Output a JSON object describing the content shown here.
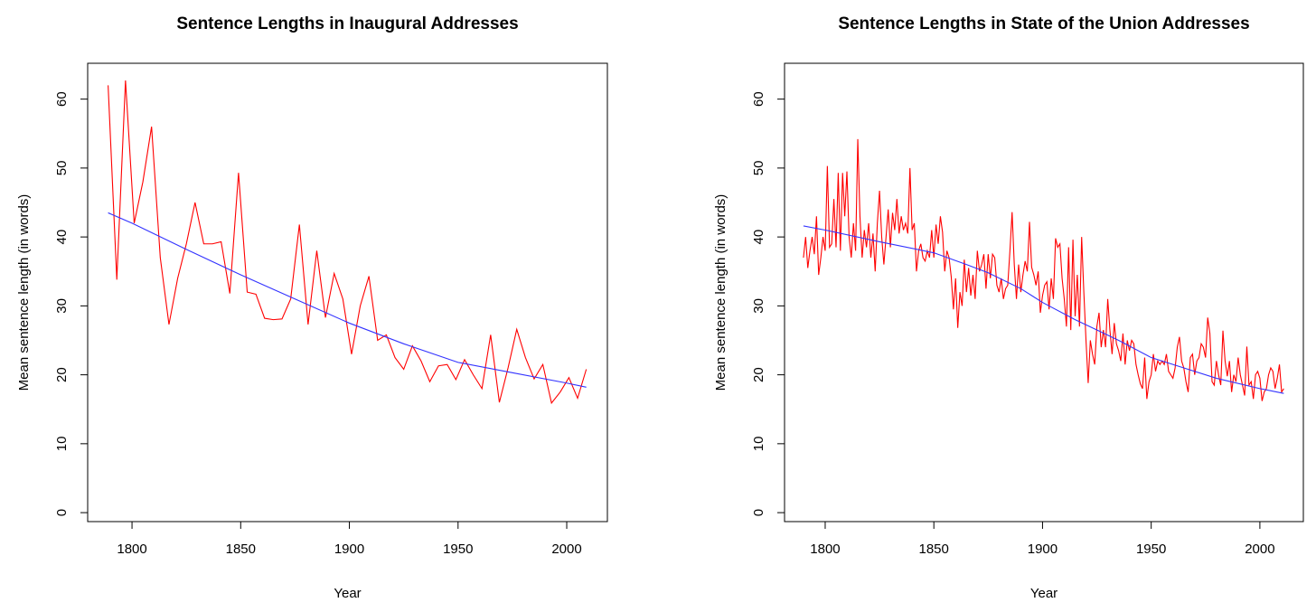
{
  "chart_data": [
    {
      "type": "line",
      "title": "Sentence Lengths in Inaugural Addresses",
      "xlabel": "Year",
      "ylabel": "Mean sentence length (in words)",
      "xlim": [
        1779.6,
        2018.7
      ],
      "ylim": [
        -1.3,
        65.2
      ],
      "xticks": [
        1800,
        1850,
        1900,
        1950,
        2000
      ],
      "yticks": [
        0,
        10,
        20,
        30,
        40,
        50,
        60
      ],
      "series": [
        {
          "color": "#ff0000",
          "x": [
            1789,
            1793,
            1797,
            1801,
            1805,
            1809,
            1813,
            1817,
            1821,
            1825,
            1829,
            1833,
            1837,
            1841,
            1845,
            1849,
            1853,
            1857,
            1861,
            1865,
            1869,
            1873,
            1877,
            1881,
            1885,
            1889,
            1893,
            1897,
            1901,
            1905,
            1909,
            1913,
            1917,
            1921,
            1925,
            1929,
            1933,
            1937,
            1941,
            1945,
            1949,
            1953,
            1957,
            1961,
            1965,
            1969,
            1973,
            1977,
            1981,
            1985,
            1989,
            1993,
            1997,
            2001,
            2005,
            2009
          ],
          "values": [
            62,
            33.8,
            62.7,
            42,
            48,
            56,
            37,
            27.3,
            34,
            39,
            45,
            39,
            39,
            39.3,
            31.8,
            49.3,
            32,
            31.7,
            28.2,
            28,
            28.1,
            31,
            41.8,
            27.3,
            38,
            28.3,
            34.7,
            31,
            23,
            30,
            34.3,
            25,
            25.8,
            22.5,
            20.8,
            24.2,
            22,
            19,
            21.3,
            21.5,
            19.3,
            22.2,
            20,
            18,
            25.8,
            16,
            21,
            26.6,
            22.5,
            19.4,
            21.5,
            15.9,
            17.5,
            19.6,
            16.6,
            20.8
          ]
        },
        {
          "color": "#3333ff",
          "x": [
            1789,
            1800,
            1825,
            1850,
            1875,
            1900,
            1925,
            1950,
            1975,
            2000,
            2009
          ],
          "values": [
            43.5,
            42,
            38.2,
            34.5,
            31,
            27.5,
            24.5,
            21.8,
            20.3,
            18.8,
            18.2
          ]
        }
      ]
    },
    {
      "type": "line",
      "title": "Sentence Lengths in State of the Union Addresses",
      "xlabel": "Year",
      "ylabel": "Mean sentence length (in words)",
      "xlim": [
        1781.3,
        2020.0
      ],
      "ylim": [
        -1.3,
        65.2
      ],
      "xticks": [
        1800,
        1850,
        1900,
        1950,
        2000
      ],
      "yticks": [
        0,
        10,
        20,
        30,
        40,
        50,
        60
      ],
      "series": [
        {
          "color": "#ff0000",
          "x": [
            1790,
            1791,
            1792,
            1793,
            1794,
            1795,
            1796,
            1797,
            1798,
            1799,
            1800,
            1801,
            1802,
            1803,
            1804,
            1805,
            1806,
            1807,
            1808,
            1809,
            1810,
            1811,
            1812,
            1813,
            1814,
            1815,
            1816,
            1817,
            1818,
            1819,
            1820,
            1821,
            1822,
            1823,
            1824,
            1825,
            1826,
            1827,
            1828,
            1829,
            1830,
            1831,
            1832,
            1833,
            1834,
            1835,
            1836,
            1837,
            1838,
            1839,
            1840,
            1841,
            1842,
            1843,
            1844,
            1845,
            1846,
            1847,
            1848,
            1849,
            1850,
            1851,
            1852,
            1853,
            1854,
            1855,
            1856,
            1857,
            1858,
            1859,
            1860,
            1861,
            1862,
            1863,
            1864,
            1865,
            1866,
            1867,
            1868,
            1869,
            1870,
            1871,
            1872,
            1873,
            1874,
            1875,
            1876,
            1877,
            1878,
            1879,
            1880,
            1881,
            1882,
            1883,
            1884,
            1885,
            1886,
            1887,
            1888,
            1889,
            1890,
            1891,
            1892,
            1893,
            1894,
            1895,
            1896,
            1897,
            1898,
            1899,
            1900,
            1901,
            1902,
            1903,
            1904,
            1905,
            1906,
            1907,
            1908,
            1909,
            1910,
            1911,
            1912,
            1913,
            1914,
            1915,
            1916,
            1917,
            1918,
            1919,
            1920,
            1921,
            1922,
            1923,
            1924,
            1925,
            1926,
            1927,
            1928,
            1929,
            1930,
            1931,
            1932,
            1933,
            1934,
            1935,
            1936,
            1937,
            1938,
            1939,
            1940,
            1941,
            1942,
            1943,
            1944,
            1945,
            1946,
            1947,
            1948,
            1949,
            1950,
            1951,
            1952,
            1953,
            1954,
            1955,
            1956,
            1957,
            1958,
            1959,
            1960,
            1961,
            1962,
            1963,
            1964,
            1965,
            1966,
            1967,
            1968,
            1969,
            1970,
            1971,
            1972,
            1973,
            1974,
            1975,
            1976,
            1977,
            1978,
            1979,
            1980,
            1981,
            1982,
            1983,
            1984,
            1985,
            1986,
            1987,
            1988,
            1989,
            1990,
            1991,
            1992,
            1993,
            1994,
            1995,
            1996,
            1997,
            1998,
            1999,
            2000,
            2001,
            2002,
            2003,
            2004,
            2005,
            2006,
            2007,
            2008,
            2009,
            2010,
            2011
          ],
          "values": [
            37,
            40,
            35.5,
            38,
            40,
            37.5,
            43,
            34.5,
            37,
            40,
            38,
            50.3,
            38.5,
            39,
            45.5,
            38.5,
            49.3,
            38,
            49.3,
            43,
            49.5,
            40,
            37,
            42,
            38,
            54.2,
            43,
            37,
            41,
            38.5,
            42,
            37,
            40.5,
            35,
            42,
            46.7,
            40,
            36,
            40,
            44,
            38.5,
            43.5,
            41,
            45.5,
            40.5,
            43,
            41,
            42,
            40.5,
            50,
            41,
            42,
            35,
            38,
            39,
            37,
            36.5,
            38,
            37,
            41,
            37,
            41.8,
            39,
            43,
            40.7,
            35,
            38,
            37,
            34.2,
            29.5,
            34,
            26.8,
            32,
            30,
            36.7,
            32,
            35.5,
            31.5,
            34.5,
            31,
            38,
            35,
            36,
            37.5,
            32.5,
            37.5,
            34,
            37.5,
            37,
            33,
            32,
            34,
            31,
            32.5,
            33,
            38,
            43.6,
            36,
            31,
            36,
            32,
            34.5,
            36.5,
            35,
            42.2,
            35.6,
            34.5,
            33,
            35,
            29,
            31.5,
            33,
            33.5,
            29.5,
            34,
            31,
            39.8,
            38.5,
            39,
            34,
            31,
            27,
            38.5,
            26.5,
            39.6,
            28.5,
            34.5,
            27,
            40,
            32,
            25,
            18.8,
            25,
            23,
            21.5,
            27,
            29,
            24,
            26.5,
            24,
            31,
            26.5,
            23,
            27.5,
            24.5,
            23.5,
            22,
            26,
            21.5,
            25,
            23.5,
            25,
            24.5,
            21.5,
            20,
            18.7,
            18,
            22.5,
            16.5,
            19,
            20,
            23,
            20.5,
            22,
            21.5,
            22,
            21.5,
            23,
            20.5,
            20,
            19.5,
            21,
            24,
            25.5,
            22,
            21,
            19,
            17.5,
            22.5,
            23,
            20,
            22,
            22.5,
            24.5,
            24,
            22.5,
            28.3,
            26,
            19,
            18.5,
            22,
            20,
            18.5,
            26.4,
            22,
            19.8,
            22,
            17.5,
            20,
            19,
            22.5,
            20,
            18.5,
            17,
            24.1,
            18.5,
            19,
            16.5,
            20,
            20.5,
            19.5,
            16.2,
            17.5,
            18,
            20,
            21,
            20.5,
            18,
            19.5,
            21.5,
            17.5,
            18
          ]
        },
        {
          "color": "#3333ff",
          "x": [
            1790,
            1800,
            1825,
            1850,
            1865,
            1875,
            1890,
            1900,
            1915,
            1925,
            1935,
            1950,
            1965,
            1980,
            2000,
            2011
          ],
          "values": [
            41.6,
            41,
            39.3,
            37.7,
            36,
            34.8,
            32.5,
            30.5,
            28,
            26.5,
            25,
            22.5,
            21,
            19.5,
            18,
            17.3
          ]
        }
      ]
    }
  ]
}
